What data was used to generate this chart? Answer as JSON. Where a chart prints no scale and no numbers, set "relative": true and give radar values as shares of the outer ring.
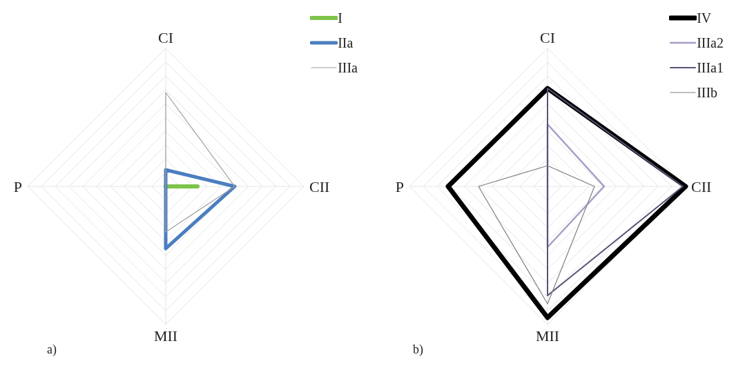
{
  "chart_data": [
    {
      "type": "radar",
      "relative": true,
      "grid": true,
      "legend": "top right",
      "categories": [
        "CI",
        "CII",
        "MII",
        "P"
      ],
      "annotations": [
        "a)"
      ],
      "series": [
        {
          "name": "I",
          "color": "#7dc44a",
          "values": [
            0,
            0.23,
            0,
            0
          ]
        },
        {
          "name": "IIa",
          "color": "#4a7ebf",
          "values": [
            0.12,
            0.5,
            0.45,
            0
          ]
        },
        {
          "name": "IIIa",
          "color": "#a0a0a0",
          "values": [
            0.68,
            0.5,
            0.33,
            0
          ]
        }
      ]
    },
    {
      "type": "radar",
      "relative": true,
      "grid": true,
      "legend": "top right",
      "categories": [
        "CI",
        "CII",
        "MII",
        "P"
      ],
      "annotations": [
        "b)"
      ],
      "series": [
        {
          "name": "IV",
          "color": "#000000",
          "values": [
            0.71,
            1,
            0.95,
            0.72
          ]
        },
        {
          "name": "IIIa2",
          "color": "#a89cc8",
          "values": [
            0.45,
            0.41,
            0.44,
            0
          ]
        },
        {
          "name": "IIIa1",
          "color": "#5a5078",
          "values": [
            0.71,
            0.98,
            0.79,
            0
          ]
        },
        {
          "name": "IIIb",
          "color": "#808080",
          "values": [
            0.15,
            0.34,
            0.85,
            0.5
          ]
        }
      ]
    }
  ]
}
